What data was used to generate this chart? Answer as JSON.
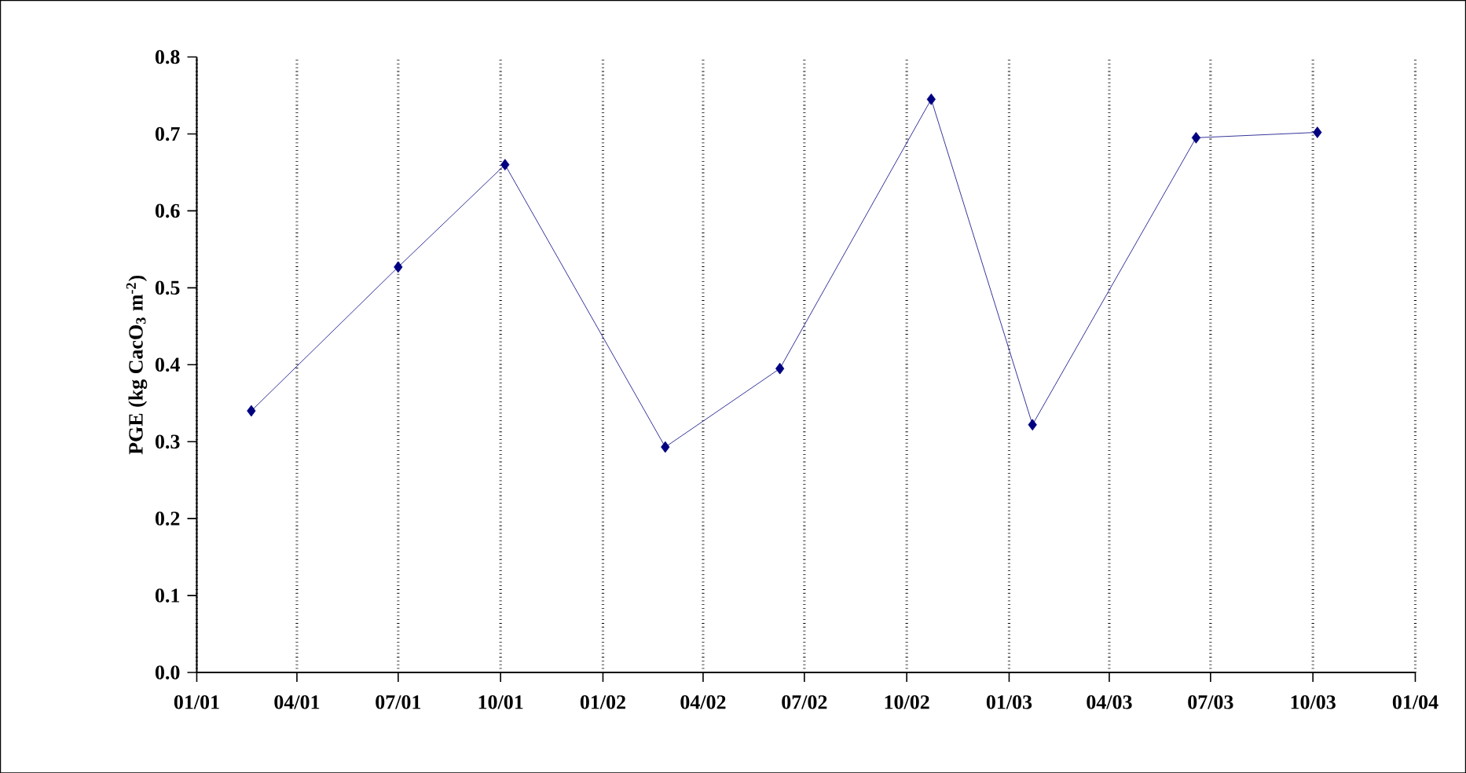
{
  "chart_data": {
    "type": "line",
    "ylabel": "PGE (kg CacO$_{3}$ m$^{-2}$)",
    "x": [
      "2001-02-19",
      "2001-07-01",
      "2001-10-05",
      "2002-02-26",
      "2002-06-09",
      "2002-10-23",
      "2003-01-22",
      "2003-06-18",
      "2003-10-05"
    ],
    "series": [
      {
        "color": "#000080",
        "values": [
          0.34,
          0.527,
          0.66,
          0.293,
          0.395,
          0.745,
          0.322,
          0.695,
          0.702
        ]
      }
    ],
    "marker": "diamond",
    "line_style": "solid",
    "grid": "x",
    "xlim": [
      "2001-01-01",
      "2004-01-01"
    ],
    "xticks": [
      {
        "value": "2001-01-01",
        "label": "01/01"
      },
      {
        "value": "2001-04-01",
        "label": "04/01"
      },
      {
        "value": "2001-07-01",
        "label": "07/01"
      },
      {
        "value": "2001-10-01",
        "label": "10/01"
      },
      {
        "value": "2002-01-01",
        "label": "01/02"
      },
      {
        "value": "2002-04-01",
        "label": "04/02"
      },
      {
        "value": "2002-07-01",
        "label": "07/02"
      },
      {
        "value": "2002-10-01",
        "label": "10/02"
      },
      {
        "value": "2003-01-01",
        "label": "01/03"
      },
      {
        "value": "2003-04-01",
        "label": "04/03"
      },
      {
        "value": "2003-07-01",
        "label": "07/03"
      },
      {
        "value": "2003-10-01",
        "label": "10/03"
      },
      {
        "value": "2004-01-01",
        "label": "01/04"
      }
    ],
    "ylim": [
      0,
      0.8
    ],
    "yticks": [
      {
        "value": 0,
        "label": "0.0"
      },
      0.1,
      0.2,
      0.3,
      0.4,
      0.5,
      0.6,
      0.7,
      0.8
    ]
  }
}
